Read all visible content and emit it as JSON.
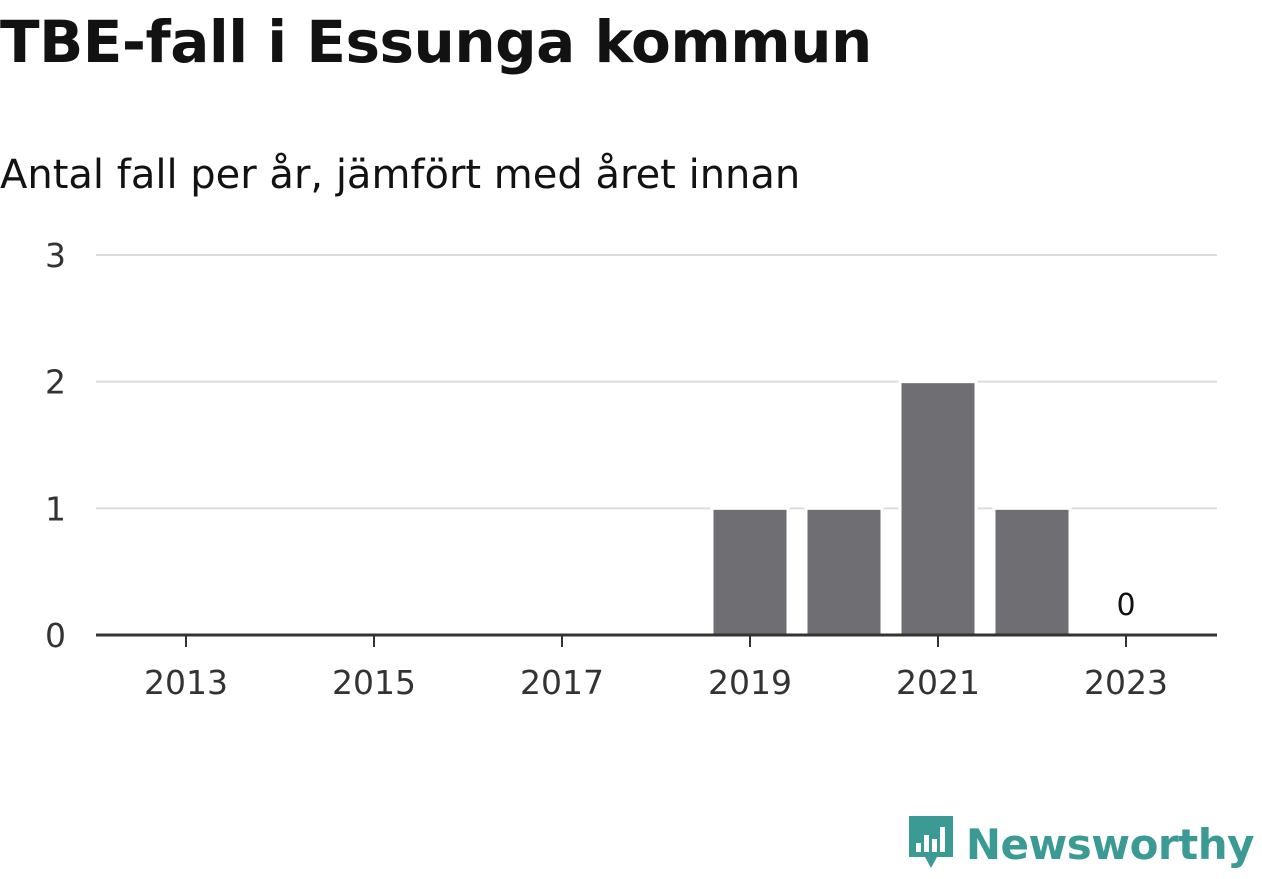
{
  "header": {
    "title": "TBE-fall i Essunga kommun",
    "subtitle": "Antal fall per år, jämfört med året innan"
  },
  "brand": {
    "name": "Newsworthy",
    "logo_icon": "newsworthy-chart-icon",
    "color": "#3b9a93"
  },
  "chart_data": {
    "type": "bar",
    "categories": [
      2013,
      2014,
      2015,
      2016,
      2017,
      2018,
      2019,
      2020,
      2021,
      2022,
      2023
    ],
    "values": [
      0,
      0,
      0,
      0,
      0,
      0,
      1,
      1,
      2,
      1,
      0
    ],
    "x_tick_labels": [
      "2013",
      "2015",
      "2017",
      "2019",
      "2021",
      "2023"
    ],
    "y_tick_labels": [
      "0",
      "1",
      "2",
      "3"
    ],
    "ylim": [
      0,
      3
    ],
    "grid": true,
    "bar_color": "#6f6e73",
    "data_labels": [
      {
        "category": 2023,
        "text": "0"
      }
    ],
    "title": "TBE-fall i Essunga kommun",
    "xlabel": "",
    "ylabel": ""
  }
}
